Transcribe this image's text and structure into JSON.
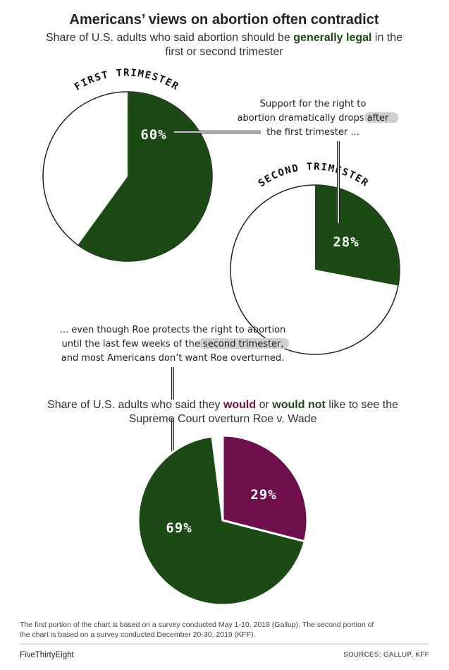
{
  "header": {
    "title": "Americans’ views on abortion often contradict",
    "subtitle_line1_pre": "Share of U.S. adults who said abortion should be ",
    "subtitle_line1_highlight": "generally legal",
    "subtitle_line1_post": " in the",
    "subtitle_line2": "first or second trimester"
  },
  "annotations": {
    "top": [
      "Support for the right to",
      "abortion dramatically drops after",
      "the first trimester ..."
    ],
    "middle": [
      "... even though Roe protects the right to abortion",
      "until the last few weeks of the second trimester,",
      "and most Americans don’t want Roe overturned."
    ]
  },
  "second_heading": {
    "line1_pre": "Share of U.S. adults who said they ",
    "line1_would": "would",
    "line1_or": " or ",
    "line1_would_not": "would not",
    "line1_post": " like to see the",
    "line2": "Supreme Court overturn Roe v. Wade"
  },
  "notes": {
    "line1": "The first portion of the chart is based on a survey conducted May 1-10, 2018 (Gallup). The second portion of",
    "line2": "the chart is based on a survey conducted December 20-30, 2019 (KFF)."
  },
  "footer": {
    "brand": "FiveThirtyEight",
    "sources": "SOURCES: GALLUP, KFF"
  },
  "colors": {
    "green": "#1b4a14",
    "purple": "#6e0f4b",
    "highlight": "#cfcfcf"
  },
  "chart_data": [
    {
      "type": "pie",
      "title": "FIRST TRIMESTER",
      "values": [
        60
      ],
      "value_labels": [
        "60%"
      ],
      "remainder_shown": "outline only"
    },
    {
      "type": "pie",
      "title": "SECOND TRIMESTER",
      "values": [
        28
      ],
      "value_labels": [
        "28%"
      ],
      "remainder_shown": "outline only"
    },
    {
      "type": "pie",
      "categories": [
        "would",
        "would not"
      ],
      "values": [
        29,
        69
      ],
      "value_labels": [
        "29%",
        "69%"
      ],
      "colors": [
        "#6e0f4b",
        "#1b4a14"
      ],
      "remainder_shown": "gap"
    }
  ]
}
